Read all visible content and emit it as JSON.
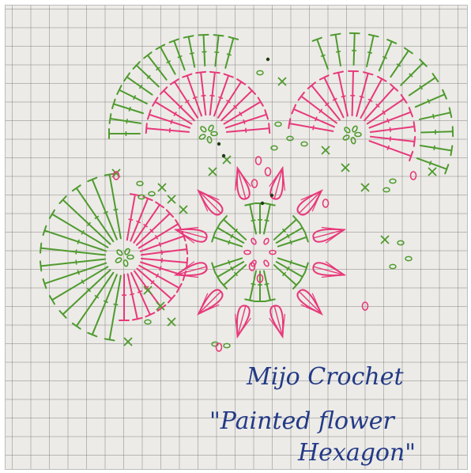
{
  "caption": {
    "line1": "Mijo Crochet",
    "line2": "\"Painted flower",
    "line3": "Hexagon\""
  },
  "colors": {
    "paper": "#ecebe7",
    "grid": "#8a8a8a",
    "green": "#4f9a2e",
    "pink": "#e8387a",
    "ink": "#233a86"
  }
}
